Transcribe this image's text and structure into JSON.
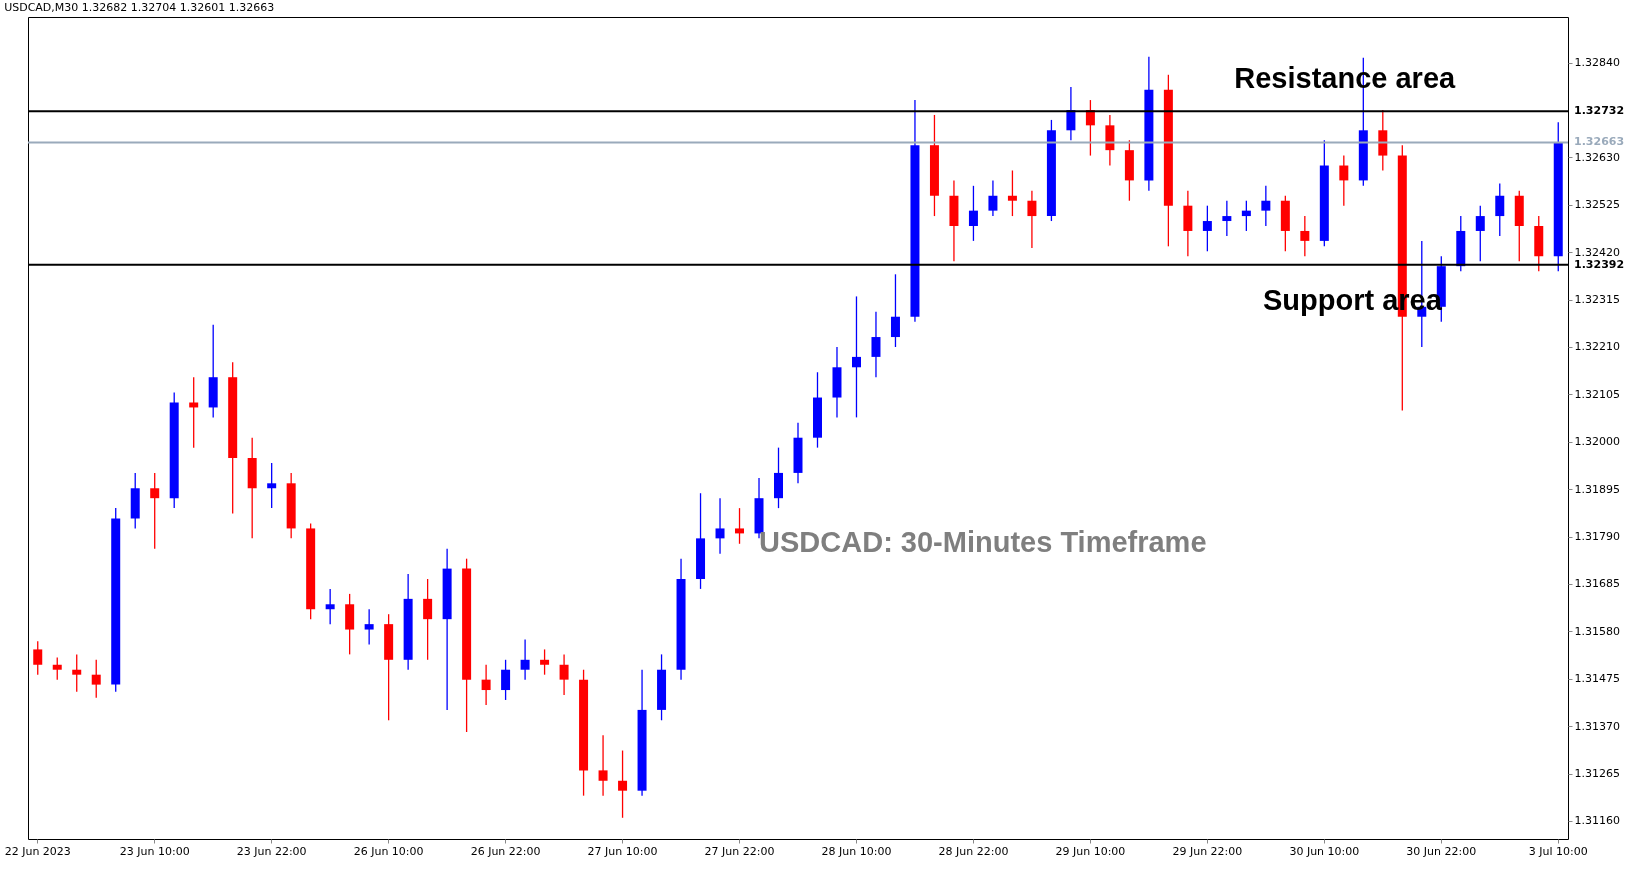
{
  "chart_data": {
    "type": "candlestick",
    "title": "USDCAD,M30 1.32682 1.32704 1.32601 1.32663",
    "categories": [
      "22 Jun 2023",
      null,
      null,
      null,
      null,
      null,
      "23 Jun 10:00",
      null,
      null,
      null,
      null,
      null,
      "23 Jun 22:00",
      null,
      null,
      null,
      null,
      null,
      "26 Jun 10:00",
      null,
      null,
      null,
      null,
      null,
      "26 Jun 22:00",
      null,
      null,
      null,
      null,
      null,
      "27 Jun 10:00",
      null,
      null,
      null,
      null,
      null,
      "27 Jun 22:00",
      null,
      null,
      null,
      null,
      null,
      "28 Jun 10:00",
      null,
      null,
      null,
      null,
      null,
      "28 Jun 22:00",
      null,
      null,
      null,
      null,
      null,
      "29 Jun 10:00",
      null,
      null,
      null,
      null,
      null,
      "29 Jun 22:00",
      null,
      null,
      null,
      null,
      null,
      "30 Jun 10:00",
      null,
      null,
      null,
      null,
      null,
      "30 Jun 22:00",
      null,
      null,
      null,
      null,
      null,
      "3 Jul 10:00"
    ],
    "ohlc": [
      [
        1.3154,
        1.31558,
        1.31484,
        1.31506
      ],
      [
        1.31506,
        1.31522,
        1.31473,
        1.31495
      ],
      [
        1.31495,
        1.31529,
        1.31446,
        1.31484
      ],
      [
        1.31484,
        1.31517,
        1.31433,
        1.31462
      ],
      [
        1.31462,
        1.31853,
        1.31446,
        1.3183
      ],
      [
        1.3183,
        1.31931,
        1.31808,
        1.31897
      ],
      [
        1.31897,
        1.31931,
        1.31763,
        1.31875
      ],
      [
        1.31875,
        1.32109,
        1.31853,
        1.32087
      ],
      [
        1.32087,
        1.32143,
        1.31987,
        1.32076
      ],
      [
        1.32076,
        1.32259,
        1.32054,
        1.32143
      ],
      [
        1.32143,
        1.32176,
        1.31841,
        1.31964
      ],
      [
        1.31964,
        1.32009,
        1.31786,
        1.31897
      ],
      [
        1.31897,
        1.31953,
        1.31853,
        1.31908
      ],
      [
        1.31908,
        1.31931,
        1.31786,
        1.31808
      ],
      [
        1.31808,
        1.31819,
        1.31607,
        1.31629
      ],
      [
        1.31629,
        1.31674,
        1.31596,
        1.3164
      ],
      [
        1.3164,
        1.31663,
        1.31529,
        1.31584
      ],
      [
        1.31584,
        1.31629,
        1.31551,
        1.31596
      ],
      [
        1.31596,
        1.31618,
        1.31383,
        1.31517
      ],
      [
        1.31517,
        1.31707,
        1.31495,
        1.31652
      ],
      [
        1.31652,
        1.31696,
        1.31517,
        1.31607
      ],
      [
        1.31607,
        1.31763,
        1.31406,
        1.31719
      ],
      [
        1.31719,
        1.31741,
        1.31357,
        1.31473
      ],
      [
        1.31473,
        1.31506,
        1.31417,
        1.3145
      ],
      [
        1.3145,
        1.31517,
        1.31428,
        1.31495
      ],
      [
        1.31495,
        1.31562,
        1.31473,
        1.31517
      ],
      [
        1.31517,
        1.3154,
        1.31484,
        1.31506
      ],
      [
        1.31506,
        1.31529,
        1.31439,
        1.31473
      ],
      [
        1.31473,
        1.31495,
        1.31216,
        1.31272
      ],
      [
        1.31272,
        1.3135,
        1.31216,
        1.31249
      ],
      [
        1.31249,
        1.31316,
        1.31167,
        1.31227
      ],
      [
        1.31227,
        1.31495,
        1.31216,
        1.31406
      ],
      [
        1.31406,
        1.31529,
        1.31383,
        1.31495
      ],
      [
        1.31495,
        1.31741,
        1.31473,
        1.31696
      ],
      [
        1.31696,
        1.31886,
        1.31674,
        1.31786
      ],
      [
        1.31786,
        1.31875,
        1.31752,
        1.31808
      ],
      [
        1.31808,
        1.31853,
        1.31774,
        1.31797
      ],
      [
        1.31797,
        1.3192,
        1.31786,
        1.31875
      ],
      [
        1.31875,
        1.31987,
        1.31853,
        1.31931
      ],
      [
        1.31931,
        1.32042,
        1.31908,
        1.32009
      ],
      [
        1.32009,
        1.32154,
        1.31987,
        1.32098
      ],
      [
        1.32098,
        1.3221,
        1.32054,
        1.32165
      ],
      [
        1.32165,
        1.32322,
        1.32054,
        1.32188
      ],
      [
        1.32188,
        1.32288,
        1.32143,
        1.32232
      ],
      [
        1.32232,
        1.32371,
        1.3221,
        1.32277
      ],
      [
        1.32277,
        1.32757,
        1.32266,
        1.32657
      ],
      [
        1.32657,
        1.32724,
        1.325,
        1.32545
      ],
      [
        1.32545,
        1.32579,
        1.324,
        1.32478
      ],
      [
        1.32478,
        1.32567,
        1.32445,
        1.32512
      ],
      [
        1.32512,
        1.32579,
        1.325,
        1.32545
      ],
      [
        1.32545,
        1.32601,
        1.325,
        1.32534
      ],
      [
        1.32534,
        1.32556,
        1.32429,
        1.325
      ],
      [
        1.325,
        1.32713,
        1.32489,
        1.3269
      ],
      [
        1.3269,
        1.32786,
        1.32668,
        1.32735
      ],
      [
        1.32735,
        1.32757,
        1.32634,
        1.32701
      ],
      [
        1.32701,
        1.32724,
        1.32612,
        1.32646
      ],
      [
        1.32646,
        1.32668,
        1.32534,
        1.32579
      ],
      [
        1.32579,
        1.32853,
        1.32556,
        1.3278
      ],
      [
        1.3278,
        1.32813,
        1.32433,
        1.32523
      ],
      [
        1.32523,
        1.32556,
        1.32411,
        1.32467
      ],
      [
        1.32467,
        1.32523,
        1.32422,
        1.32489
      ],
      [
        1.32489,
        1.32534,
        1.32456,
        1.325
      ],
      [
        1.325,
        1.32534,
        1.32467,
        1.32512
      ],
      [
        1.32512,
        1.32567,
        1.32478,
        1.32534
      ],
      [
        1.32534,
        1.32545,
        1.32422,
        1.32467
      ],
      [
        1.32467,
        1.325,
        1.32411,
        1.32445
      ],
      [
        1.32445,
        1.32668,
        1.32433,
        1.32612
      ],
      [
        1.32612,
        1.32634,
        1.32523,
        1.32579
      ],
      [
        1.32579,
        1.32851,
        1.32567,
        1.3269
      ],
      [
        1.3269,
        1.32735,
        1.32601,
        1.32634
      ],
      [
        1.32634,
        1.32657,
        1.32069,
        1.32277
      ],
      [
        1.32277,
        1.32445,
        1.3221,
        1.32299
      ],
      [
        1.32299,
        1.32411,
        1.32266,
        1.32389
      ],
      [
        1.32389,
        1.325,
        1.32378,
        1.32467
      ],
      [
        1.32467,
        1.32523,
        1.324,
        1.325
      ],
      [
        1.325,
        1.32572,
        1.32456,
        1.32545
      ],
      [
        1.32545,
        1.32556,
        1.324,
        1.32478
      ],
      [
        1.32478,
        1.325,
        1.32378,
        1.32411
      ],
      [
        1.32411,
        1.32708,
        1.32378,
        1.32663
      ]
    ],
    "colors": [
      "#ff0000",
      "#ff0000",
      "#ff0000",
      "#ff0000",
      "#0000ff",
      "#0000ff",
      "#ff0000",
      "#0000ff",
      "#ff0000",
      "#0000ff",
      "#ff0000",
      "#ff0000",
      "#0000ff",
      "#ff0000",
      "#ff0000",
      "#0000ff",
      "#ff0000",
      "#0000ff",
      "#ff0000",
      "#0000ff",
      "#ff0000",
      "#0000ff",
      "#ff0000",
      "#ff0000",
      "#0000ff",
      "#0000ff",
      "#ff0000",
      "#ff0000",
      "#ff0000",
      "#ff0000",
      "#ff0000",
      "#0000ff",
      "#0000ff",
      "#0000ff",
      "#0000ff",
      "#0000ff",
      "#ff0000",
      "#0000ff",
      "#0000ff",
      "#0000ff",
      "#0000ff",
      "#0000ff",
      "#0000ff",
      "#0000ff",
      "#0000ff",
      "#0000ff",
      "#ff0000",
      "#ff0000",
      "#0000ff",
      "#0000ff",
      "#ff0000",
      "#ff0000",
      "#0000ff",
      "#0000ff",
      "#ff0000",
      "#ff0000",
      "#ff0000",
      "#0000ff",
      "#ff0000",
      "#ff0000",
      "#0000ff",
      "#0000ff",
      "#0000ff",
      "#0000ff",
      "#ff0000",
      "#ff0000",
      "#0000ff",
      "#ff0000",
      "#0000ff",
      "#ff0000",
      "#ff0000",
      "#0000ff",
      "#0000ff",
      "#0000ff",
      "#0000ff",
      "#0000ff",
      "#ff0000",
      "#ff0000",
      "#0000ff"
    ],
    "ylim": [
      1.3112,
      1.32941
    ],
    "yticks": [
      {
        "value": 1.3116,
        "label": "1.31160"
      },
      1.31265,
      {
        "value": 1.3137,
        "label": "1.31370"
      },
      1.31475,
      {
        "value": 1.3158,
        "label": "1.31580"
      },
      1.31685,
      {
        "value": 1.3179,
        "label": "1.31790"
      },
      1.31895,
      {
        "value": 1.32,
        "label": "1.32000"
      },
      1.32105,
      {
        "value": 1.3221,
        "label": "1.32210"
      },
      1.32315,
      {
        "value": 1.3242,
        "label": "1.32420"
      },
      1.32525,
      {
        "value": 1.3263,
        "label": "1.32630"
      },
      {
        "value": 1.3284,
        "label": "1.32840"
      }
    ],
    "ref_lines": [
      {
        "axis": "y",
        "value": 1.32732,
        "label": "1.32732",
        "color": "#000000"
      },
      {
        "axis": "y",
        "value": 1.32392,
        "label": "1.32392",
        "color": "#000000"
      },
      {
        "axis": "y",
        "value": 1.32663,
        "label": "1.32663",
        "color": "#9aaabb"
      }
    ],
    "annotations": [
      "Resistance area",
      "Support area",
      "USDCAD: 30-Minutes Timeframe"
    ]
  }
}
